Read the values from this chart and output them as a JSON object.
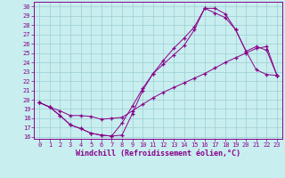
{
  "xlabel": "Windchill (Refroidissement éolien,°C)",
  "background_color": "#c8eef0",
  "line_color": "#880088",
  "xlim": [
    -0.5,
    23.5
  ],
  "ylim": [
    15.8,
    30.5
  ],
  "yticks": [
    16,
    17,
    18,
    19,
    20,
    21,
    22,
    23,
    24,
    25,
    26,
    27,
    28,
    29,
    30
  ],
  "xticks": [
    0,
    1,
    2,
    3,
    4,
    5,
    6,
    7,
    8,
    9,
    10,
    11,
    12,
    13,
    14,
    15,
    16,
    17,
    18,
    19,
    20,
    21,
    22,
    23
  ],
  "line1_x": [
    0,
    1,
    2,
    3,
    4,
    5,
    6,
    7,
    8,
    9,
    10,
    11,
    12,
    13,
    14,
    15,
    16,
    17,
    18,
    19,
    20,
    21,
    22,
    23
  ],
  "line1_y": [
    19.7,
    19.2,
    18.3,
    17.3,
    16.9,
    16.4,
    16.2,
    16.1,
    17.5,
    19.3,
    21.2,
    22.8,
    23.8,
    24.8,
    25.8,
    27.5,
    29.8,
    29.3,
    28.8,
    27.5,
    25.2,
    23.2,
    22.7,
    22.6
  ],
  "line2_x": [
    0,
    1,
    2,
    3,
    4,
    5,
    6,
    7,
    8,
    9,
    10,
    11,
    12,
    13,
    14,
    15,
    16,
    17,
    18,
    19,
    20,
    21,
    22,
    23
  ],
  "line2_y": [
    19.7,
    19.2,
    18.3,
    17.3,
    16.9,
    16.4,
    16.2,
    16.1,
    16.2,
    18.5,
    21.0,
    22.8,
    24.2,
    25.5,
    26.6,
    27.8,
    29.8,
    29.8,
    29.2,
    27.5,
    25.2,
    25.7,
    25.3,
    22.6
  ],
  "line3_x": [
    0,
    1,
    2,
    3,
    4,
    5,
    6,
    7,
    8,
    9,
    10,
    11,
    12,
    13,
    14,
    15,
    16,
    17,
    18,
    19,
    20,
    21,
    22,
    23
  ],
  "line3_y": [
    19.7,
    19.2,
    18.8,
    18.3,
    18.3,
    18.2,
    17.9,
    18.0,
    18.1,
    18.8,
    19.5,
    20.2,
    20.8,
    21.3,
    21.8,
    22.3,
    22.8,
    23.4,
    24.0,
    24.5,
    25.0,
    25.5,
    25.7,
    22.6
  ],
  "grid_color": "#9eced0",
  "tick_fontsize": 5.0,
  "xlabel_fontsize": 6.0
}
